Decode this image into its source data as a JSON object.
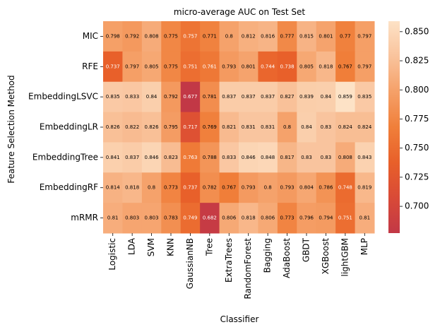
{
  "chart_data": {
    "type": "heatmap",
    "title": "micro-average AUC on Test Set",
    "xlabel": "Classifier",
    "ylabel": "Feature Selection Method",
    "x_categories": [
      "Logistic",
      "LDA",
      "SVM",
      "KNN",
      "GaussianNB",
      "Tree",
      "ExtraTrees",
      "RandomForest",
      "Bagging",
      "AdaBoost",
      "GBDT",
      "XGBoost",
      "lightGBM",
      "MLP"
    ],
    "y_categories": [
      "MIC",
      "RFE",
      "EmbeddingLSVC",
      "EmbeddingLR",
      "EmbeddingTree",
      "EmbeddingRF",
      "mRMR"
    ],
    "values": [
      [
        0.798,
        0.792,
        0.808,
        0.775,
        0.757,
        0.771,
        0.8,
        0.812,
        0.816,
        0.777,
        0.815,
        0.801,
        0.77,
        0.797
      ],
      [
        0.737,
        0.797,
        0.805,
        0.775,
        0.751,
        0.761,
        0.793,
        0.801,
        0.744,
        0.738,
        0.805,
        0.818,
        0.767,
        0.797
      ],
      [
        0.835,
        0.833,
        0.84,
        0.792,
        0.677,
        0.781,
        0.837,
        0.837,
        0.837,
        0.827,
        0.839,
        0.84,
        0.859,
        0.835
      ],
      [
        0.826,
        0.822,
        0.826,
        0.795,
        0.717,
        0.769,
        0.821,
        0.831,
        0.831,
        0.8,
        0.84,
        0.83,
        0.824,
        0.824
      ],
      [
        0.841,
        0.837,
        0.846,
        0.823,
        0.763,
        0.788,
        0.833,
        0.846,
        0.848,
        0.817,
        0.83,
        0.83,
        0.808,
        0.843
      ],
      [
        0.814,
        0.818,
        0.8,
        0.773,
        0.737,
        0.782,
        0.767,
        0.793,
        0.8,
        0.793,
        0.804,
        0.786,
        0.748,
        0.819
      ],
      [
        0.81,
        0.803,
        0.803,
        0.783,
        0.749,
        0.682,
        0.806,
        0.818,
        0.806,
        0.773,
        0.796,
        0.794,
        0.751,
        0.81
      ]
    ],
    "value_labels": [
      [
        "0.798",
        "0.792",
        "0.808",
        "0.775",
        "0.757",
        "0.771",
        "0.8",
        "0.812",
        "0.816",
        "0.777",
        "0.815",
        "0.801",
        "0.77",
        "0.797"
      ],
      [
        "0.737",
        "0.797",
        "0.805",
        "0.775",
        "0.751",
        "0.761",
        "0.793",
        "0.801",
        "0.744",
        "0.738",
        "0.805",
        "0.818",
        "0.767",
        "0.797"
      ],
      [
        "0.835",
        "0.833",
        "0.84",
        "0.792",
        "0.677",
        "0.781",
        "0.837",
        "0.837",
        "0.837",
        "0.827",
        "0.839",
        "0.84",
        "0.859",
        "0.835"
      ],
      [
        "0.826",
        "0.822",
        "0.826",
        "0.795",
        "0.717",
        "0.769",
        "0.821",
        "0.831",
        "0.831",
        "0.8",
        "0.84",
        "0.83",
        "0.824",
        "0.824"
      ],
      [
        "0.841",
        "0.837",
        "0.846",
        "0.823",
        "0.763",
        "0.788",
        "0.833",
        "0.846",
        "0.848",
        "0.817",
        "0.83",
        "0.83",
        "0.808",
        "0.843"
      ],
      [
        "0.814",
        "0.818",
        "0.8",
        "0.773",
        "0.737",
        "0.782",
        "0.767",
        "0.793",
        "0.8",
        "0.793",
        "0.804",
        "0.786",
        "0.748",
        "0.819"
      ],
      [
        "0.81",
        "0.803",
        "0.803",
        "0.783",
        "0.749",
        "0.682",
        "0.806",
        "0.818",
        "0.806",
        "0.773",
        "0.796",
        "0.794",
        "0.751",
        "0.81"
      ]
    ],
    "colorbar": {
      "range": [
        0.677,
        0.859
      ],
      "ticks": [
        "0.700",
        "0.725",
        "0.750",
        "0.775",
        "0.800",
        "0.825",
        "0.850"
      ],
      "colormap": "rocket-like",
      "colors": [
        "#c23846",
        "#d94a37",
        "#e8602a",
        "#f07f3a",
        "#f5a068",
        "#f9c39c",
        "#fde2c6"
      ]
    }
  }
}
